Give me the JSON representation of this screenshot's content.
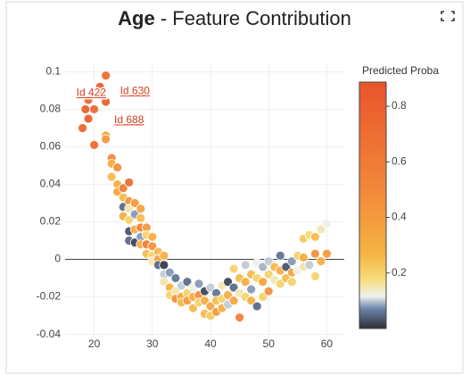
{
  "chart_data": {
    "type": "scatter",
    "title": {
      "feature": "Age",
      "text": " - Feature Contribution"
    },
    "xlim": [
      15,
      63
    ],
    "xticks": [
      20,
      30,
      40,
      50,
      60
    ],
    "ylim": [
      -0.044,
      0.104
    ],
    "yticks": [
      -0.04,
      -0.02,
      0,
      0.02,
      0.04,
      0.06,
      0.08,
      0.1
    ],
    "grid": true,
    "zero_line": true,
    "colorbar": {
      "title": "Predicted Proba",
      "range": [
        0,
        0.887
      ],
      "ticks": [
        0.2,
        0.4,
        0.6,
        0.8
      ],
      "colorscale": [
        [
          0,
          "#30303a"
        ],
        [
          0.08,
          "#6b84a8"
        ],
        [
          0.13,
          "#eef0f0"
        ],
        [
          0.2,
          "#f6dd7c"
        ],
        [
          0.3,
          "#f5b443"
        ],
        [
          0.55,
          "#f28a3b"
        ],
        [
          1,
          "#e9542b"
        ]
      ]
    },
    "annotations": [
      {
        "text": "Id 422",
        "x": 19.5,
        "y": 0.0885
      },
      {
        "text": "Id 630",
        "x": 27,
        "y": 0.0895
      },
      {
        "text": "Id 688",
        "x": 26,
        "y": 0.074
      }
    ],
    "x": [
      18,
      18.5,
      19,
      19,
      20,
      20,
      21,
      21,
      22,
      22,
      22,
      22,
      23,
      23,
      23,
      24,
      24,
      24,
      25,
      25,
      25,
      25,
      26,
      26,
      26,
      26,
      26,
      26,
      27,
      27,
      27,
      27,
      28,
      28,
      28,
      28,
      28,
      29,
      29,
      29,
      29,
      30,
      30,
      30,
      30,
      31,
      31,
      31,
      32,
      32,
      32,
      32,
      33,
      33,
      33,
      34,
      34,
      34,
      35,
      35,
      35,
      36,
      36,
      36,
      37,
      37,
      37,
      38,
      38,
      38,
      39,
      39,
      39,
      40,
      40,
      40,
      41,
      41,
      41,
      42,
      42,
      42,
      43,
      43,
      43,
      44,
      44,
      44,
      45,
      45,
      45,
      46,
      46,
      46,
      47,
      47,
      47,
      48,
      48,
      48,
      49,
      49,
      49,
      50,
      50,
      50,
      51,
      51,
      52,
      52,
      52,
      53,
      53,
      54,
      54,
      54,
      55,
      55,
      56,
      56,
      56,
      57,
      57,
      58,
      58,
      58,
      59,
      59,
      60,
      60
    ],
    "values": [
      0.07,
      0.08,
      0.075,
      0.085,
      0.061,
      0.08,
      0.088,
      0.092,
      0.098,
      0.084,
      0.066,
      0.064,
      0.054,
      0.051,
      0.044,
      0.049,
      0.04,
      0.036,
      0.038,
      0.033,
      0.028,
      0.023,
      0.041,
      0.031,
      0.027,
      0.021,
      0.015,
      0.01,
      0.03,
      0.024,
      0.016,
      0.009,
      0.027,
      0.022,
      0.017,
      0.012,
      0.008,
      0.017,
      0.013,
      0.008,
      0.003,
      0.012,
      0.007,
      0.002,
      -0.001,
      0.004,
      0.0,
      -0.003,
      -0.003,
      -0.008,
      0.002,
      -0.012,
      -0.007,
      -0.015,
      -0.019,
      -0.01,
      -0.017,
      -0.021,
      -0.014,
      -0.02,
      -0.023,
      -0.012,
      -0.018,
      -0.022,
      -0.015,
      -0.02,
      -0.026,
      -0.013,
      -0.019,
      -0.023,
      -0.017,
      -0.022,
      -0.029,
      -0.015,
      -0.025,
      -0.03,
      -0.018,
      -0.022,
      -0.028,
      -0.014,
      -0.021,
      -0.026,
      -0.012,
      -0.019,
      -0.024,
      -0.005,
      -0.015,
      -0.022,
      -0.01,
      -0.018,
      -0.031,
      -0.003,
      -0.012,
      -0.02,
      -0.008,
      -0.016,
      -0.022,
      -0.002,
      -0.01,
      -0.025,
      -0.004,
      -0.012,
      -0.02,
      -0.001,
      -0.008,
      -0.017,
      -0.004,
      -0.011,
      0.002,
      -0.006,
      -0.013,
      -0.004,
      -0.01,
      -0.001,
      -0.007,
      -0.012,
      0.002,
      -0.006,
      -0.004,
      0.011,
      0.001,
      0.013,
      -0.003,
      0.012,
      0.003,
      -0.009,
      0.016,
      -0.001,
      0.019,
      0.003
    ],
    "proba": [
      0.75,
      0.8,
      0.8,
      0.78,
      0.7,
      0.75,
      0.75,
      0.78,
      0.72,
      0.8,
      0.35,
      0.4,
      0.5,
      0.3,
      0.25,
      0.45,
      0.3,
      0.35,
      0.6,
      0.25,
      0.05,
      0.3,
      0.7,
      0.45,
      0.15,
      0.2,
      0.03,
      0.05,
      0.4,
      0.08,
      0.3,
      0.02,
      0.35,
      0.25,
      0.55,
      0.08,
      0.3,
      0.4,
      0.2,
      0.6,
      0.25,
      0.3,
      0.45,
      0.2,
      0.15,
      0.25,
      0.35,
      0.05,
      0.01,
      0.1,
      0.3,
      0.15,
      0.08,
      0.3,
      0.2,
      0.06,
      0.15,
      0.45,
      0.1,
      0.35,
      0.25,
      0.05,
      0.2,
      0.4,
      0.12,
      0.3,
      0.25,
      0.08,
      0.45,
      0.2,
      0.02,
      0.3,
      0.25,
      0.1,
      0.35,
      0.22,
      0.06,
      0.25,
      0.4,
      0.15,
      0.2,
      0.3,
      0.02,
      0.3,
      0.1,
      0.2,
      0.05,
      0.35,
      0.25,
      0.15,
      0.55,
      0.1,
      0.3,
      0.2,
      0.25,
      0.08,
      0.3,
      0.12,
      0.2,
      0.05,
      0.09,
      0.35,
      0.2,
      0.1,
      0.2,
      0.45,
      0.25,
      0.15,
      0.06,
      0.3,
      0.2,
      0.03,
      0.25,
      0.08,
      0.35,
      0.2,
      0.2,
      0.12,
      0.15,
      0.22,
      0.3,
      0.18,
      0.1,
      0.25,
      0.45,
      0.2,
      0.15,
      0.3,
      0.12,
      0.4
    ]
  }
}
